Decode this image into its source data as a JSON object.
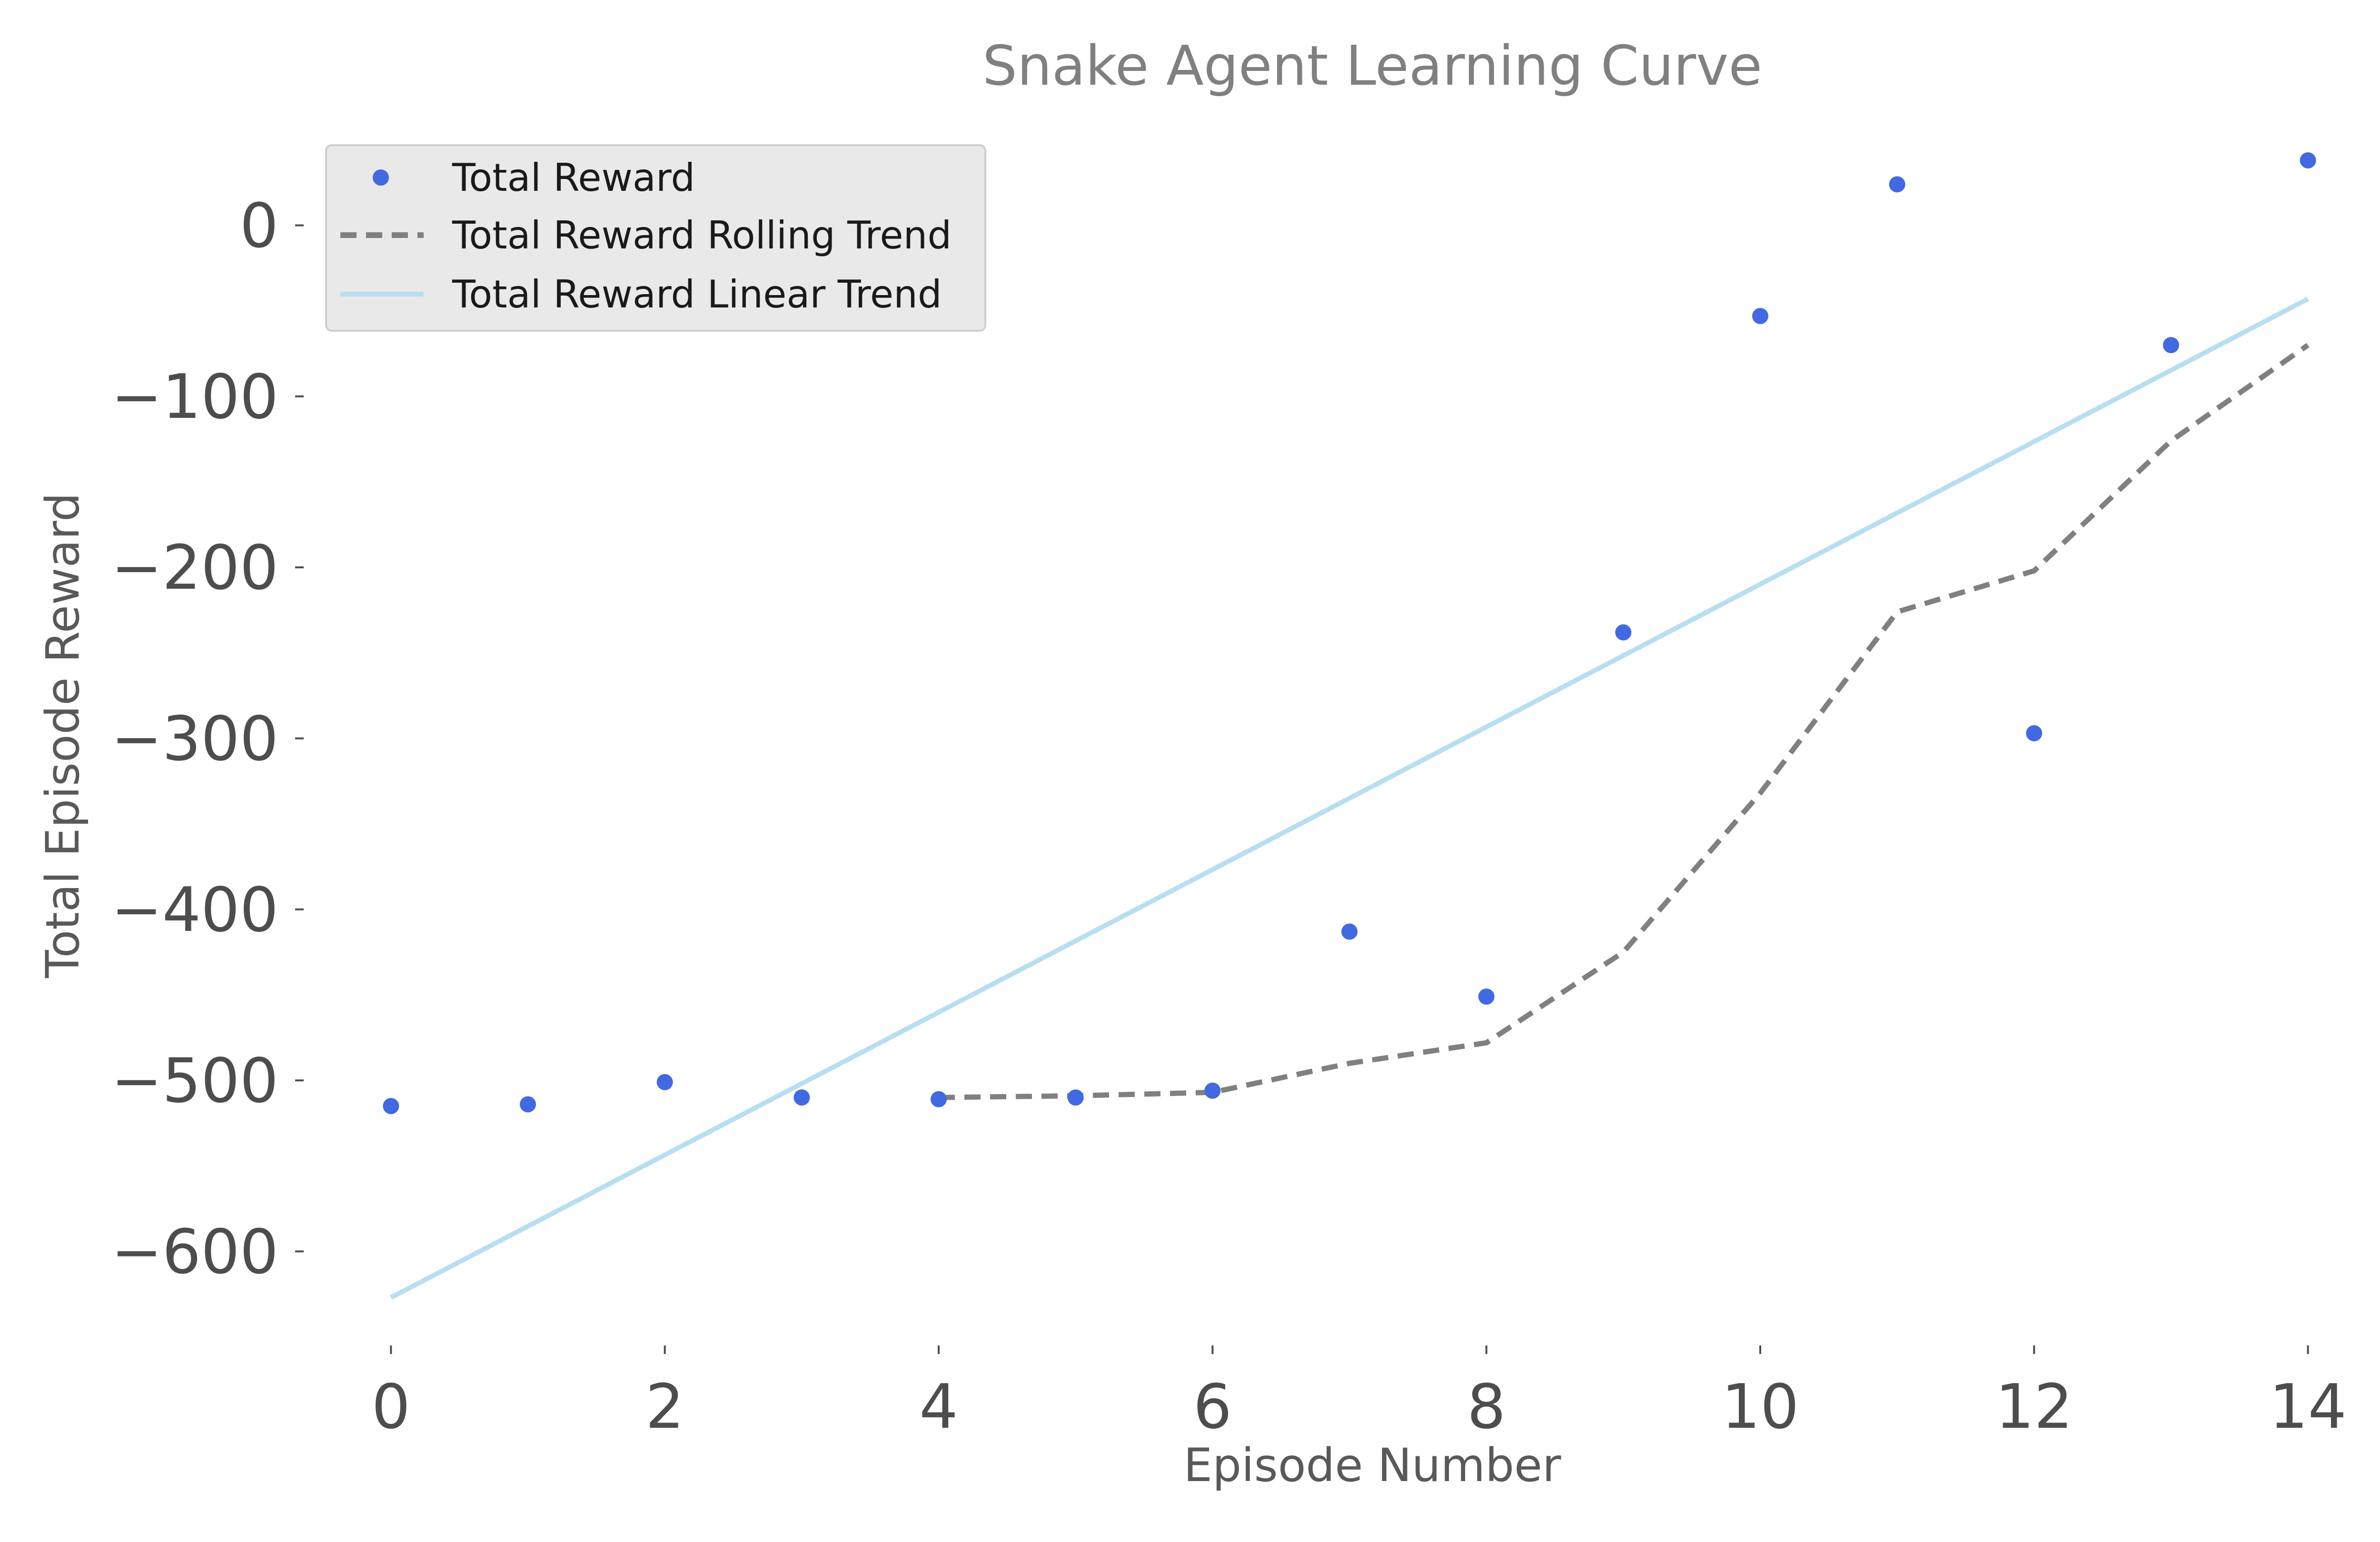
{
  "chart_data": {
    "type": "scatter",
    "title": "Snake Agent Learning Curve",
    "xlabel": "Episode Number",
    "ylabel": "Total Episode Reward",
    "xlim": [
      -0.7,
      14.7
    ],
    "ylim": [
      -660,
      65
    ],
    "xticks": [
      0,
      2,
      4,
      6,
      8,
      10,
      12,
      14
    ],
    "xtick_labels": [
      "0",
      "2",
      "4",
      "6",
      "8",
      "10",
      "12",
      "14"
    ],
    "yticks": [
      0,
      -100,
      -200,
      -300,
      -400,
      -500,
      -600
    ],
    "ytick_labels": [
      "0",
      "−100",
      "−200",
      "−300",
      "−400",
      "−500",
      "−600"
    ],
    "grid": false,
    "legend_position": "top-left",
    "series": [
      {
        "name": "Total Reward",
        "style": "markers",
        "color": "#4169e1",
        "x": [
          0,
          1,
          2,
          3,
          4,
          5,
          6,
          7,
          8,
          9,
          10,
          11,
          12,
          13,
          14
        ],
        "y": [
          -515,
          -514,
          -501,
          -510,
          -511,
          -510,
          -506,
          -413,
          -451,
          -238,
          -53,
          24,
          -297,
          -70,
          38
        ]
      },
      {
        "name": "Total Reward Rolling Trend",
        "style": "dashed",
        "color": "#808080",
        "x": [
          4,
          5,
          6,
          7,
          8,
          9,
          10,
          11,
          12,
          13,
          14
        ],
        "y": [
          -510,
          -509,
          -507,
          -490,
          -478,
          -425,
          -332,
          -226,
          -202,
          -126,
          -70
        ]
      },
      {
        "name": "Total Reward Linear Trend",
        "style": "solid",
        "color": "#b8def2",
        "x": [
          0,
          14
        ],
        "y": [
          -627,
          -43
        ]
      }
    ]
  }
}
